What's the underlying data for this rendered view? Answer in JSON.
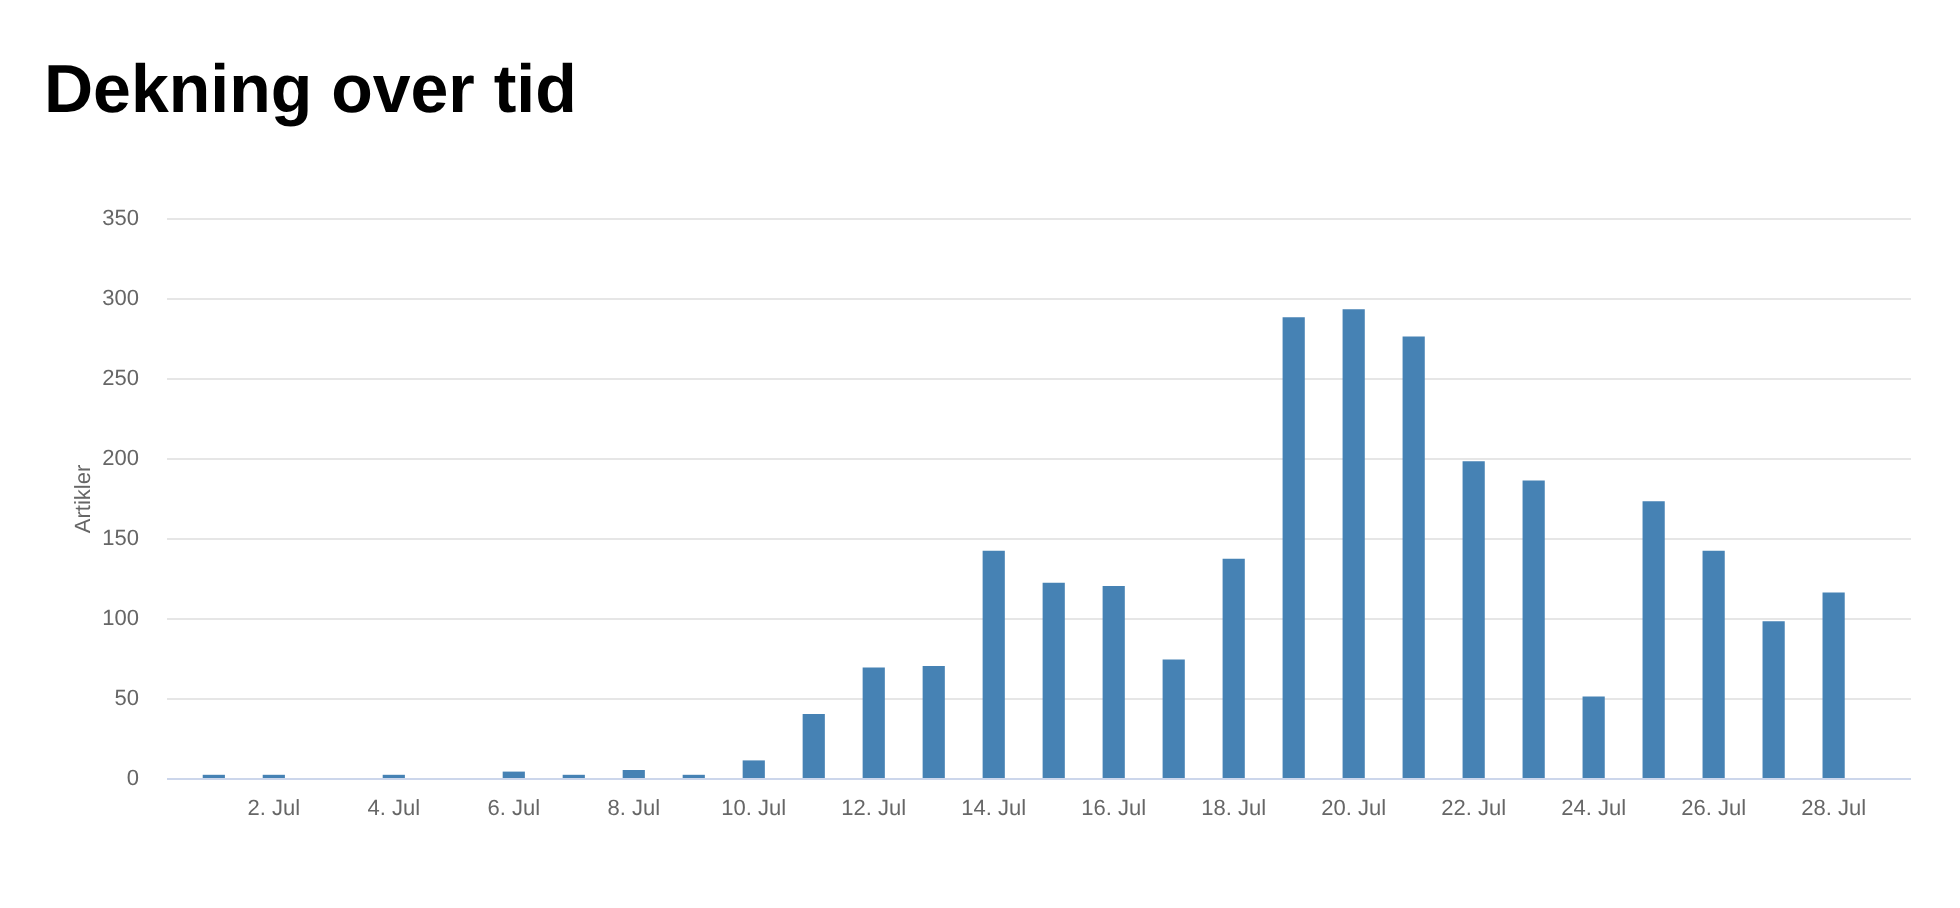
{
  "chart_data": {
    "type": "bar",
    "title": "Dekning over tid",
    "ylabel": "Artikler",
    "categories": [
      null,
      "2. Jul",
      null,
      "4. Jul",
      null,
      "6. Jul",
      null,
      "8. Jul",
      null,
      "10. Jul",
      null,
      "12. Jul",
      null,
      "14. Jul",
      null,
      "16. Jul",
      null,
      "18. Jul",
      null,
      "20. Jul",
      null,
      "22. Jul",
      null,
      "24. Jul",
      null,
      "26. Jul",
      null,
      "28. Jul"
    ],
    "series": [
      {
        "color": "#4682b4",
        "values": [
          2,
          2,
          0,
          2,
          0,
          4,
          2,
          5,
          2,
          11,
          40,
          69,
          70,
          142,
          122,
          120,
          74,
          137,
          288,
          293,
          276,
          198,
          186,
          51,
          173,
          142,
          98,
          116
        ]
      }
    ],
    "ylim": [
      0,
      350
    ],
    "yticks": [
      0,
      50,
      100,
      150,
      200,
      250,
      300,
      350
    ],
    "grid": "y"
  }
}
